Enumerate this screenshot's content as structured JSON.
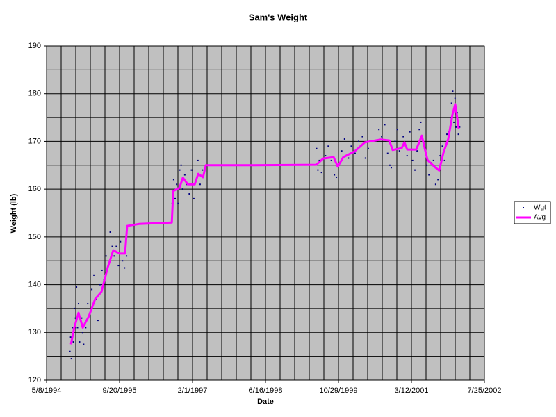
{
  "chart_data": {
    "type": "scatter",
    "title": "Sam's Weight",
    "x_label": "Date",
    "y_label": "Weight (lb)",
    "xlim": [
      "1994-05-08",
      "2002-07-25"
    ],
    "xticks": [
      {
        "value": "1994-05-08",
        "label": "5/8/1994"
      },
      {
        "value": "1995-09-20",
        "label": "9/20/1995"
      },
      {
        "value": "1997-02-01",
        "label": "2/1/1997"
      },
      {
        "value": "1998-06-16",
        "label": "6/16/1998"
      },
      {
        "value": "1999-10-29",
        "label": "10/29/1999"
      },
      {
        "value": "2001-03-12",
        "label": "3/12/2001"
      },
      {
        "value": "2002-07-25",
        "label": "7/25/2002"
      }
    ],
    "x_grid_step_days": 100,
    "ylim": [
      120,
      190
    ],
    "yticks": [
      120,
      130,
      140,
      150,
      160,
      170,
      180,
      190
    ],
    "y_grid_step": 5,
    "grid": true,
    "legend": "right",
    "background": "#c0c0c0",
    "series": [
      {
        "name": "Wgt",
        "mode": "markers",
        "color": "#000080",
        "x": [
          "1994-10-15",
          "1994-10-20",
          "1994-10-25",
          "1994-11-01",
          "1994-11-08",
          "1994-11-15",
          "1994-11-22",
          "1994-11-29",
          "1994-12-06",
          "1994-12-13",
          "1994-12-20",
          "1995-01-03",
          "1995-01-10",
          "1995-01-17",
          "1995-01-31",
          "1995-02-14",
          "1995-02-28",
          "1995-03-14",
          "1995-03-28",
          "1995-04-11",
          "1995-04-25",
          "1995-05-09",
          "1995-05-23",
          "1995-06-06",
          "1995-06-20",
          "1995-07-04",
          "1995-07-18",
          "1995-08-01",
          "1995-08-15",
          "1995-08-29",
          "1995-09-12",
          "1995-09-26",
          "1995-10-10",
          "1995-10-24",
          "1995-11-07",
          "1996-09-15",
          "1996-09-25",
          "1996-10-05",
          "1996-10-15",
          "1996-10-25",
          "1996-11-05",
          "1996-11-15",
          "1996-11-25",
          "1996-12-10",
          "1996-12-25",
          "1997-01-10",
          "1997-01-25",
          "1997-02-10",
          "1997-02-25",
          "1997-03-10",
          "1997-03-25",
          "1997-04-10",
          "1999-06-01",
          "1999-06-10",
          "1999-06-20",
          "1999-07-05",
          "1999-08-01",
          "1999-08-20",
          "1999-09-10",
          "1999-10-01",
          "1999-10-15",
          "1999-11-01",
          "1999-11-20",
          "1999-12-10",
          "2000-01-05",
          "2000-01-25",
          "2000-02-20",
          "2000-03-15",
          "2000-04-10",
          "2000-05-01",
          "2000-05-20",
          "2000-08-01",
          "2000-08-20",
          "2000-09-10",
          "2000-09-30",
          "2000-10-15",
          "2000-10-25",
          "2000-11-20",
          "2000-12-05",
          "2000-12-20",
          "2001-01-15",
          "2001-02-10",
          "2001-03-01",
          "2001-03-20",
          "2001-04-05",
          "2001-04-20",
          "2001-05-05",
          "2001-05-15",
          "2001-05-25",
          "2001-06-10",
          "2001-06-25",
          "2001-07-10",
          "2001-07-25",
          "2001-08-10",
          "2001-08-25",
          "2001-09-10",
          "2001-09-25",
          "2001-10-10",
          "2001-10-25",
          "2001-11-10",
          "2001-11-25",
          "2001-12-05",
          "2001-12-12",
          "2001-12-20",
          "2001-12-28",
          "2002-01-05",
          "2002-01-12",
          "2002-01-20",
          "2002-01-28",
          "2002-02-05"
        ],
        "values": [
          126,
          129,
          124.5,
          131,
          128,
          135,
          133,
          139.5,
          131,
          136,
          128,
          133,
          130,
          127.5,
          131,
          136,
          134,
          139,
          142,
          137,
          132.5,
          140,
          143,
          141,
          146,
          144,
          151,
          148,
          146,
          148,
          144,
          149,
          145,
          143.5,
          146,
          157,
          162,
          158,
          161,
          157,
          164,
          165,
          160,
          163,
          161,
          159,
          164,
          158,
          162,
          166,
          161,
          164,
          168.5,
          164,
          166,
          163.5,
          167,
          169,
          166,
          163,
          162.5,
          165,
          168,
          170.5,
          166.5,
          169,
          167.5,
          170,
          171,
          166.5,
          168.5,
          172.5,
          171,
          173.5,
          167.5,
          165,
          164.5,
          170,
          172.5,
          168,
          171,
          167,
          172,
          166,
          164,
          168,
          172.5,
          174,
          171,
          168.5,
          165,
          163,
          165.5,
          166,
          161,
          162,
          167,
          169,
          166,
          171.5,
          172,
          175,
          178,
          180.5,
          174,
          179,
          173,
          176,
          171.5,
          173
        ]
      },
      {
        "name": "Avg",
        "mode": "line",
        "color": "#ff00ff",
        "x": [
          "1994-10-22",
          "1994-11-14",
          "1994-12-13",
          "1995-01-11",
          "1995-02-22",
          "1995-04-06",
          "1995-05-19",
          "1995-07-01",
          "1995-08-08",
          "1995-09-20",
          "1995-10-28",
          "1995-11-11",
          "1996-01-31",
          "1996-09-12",
          "1996-09-22",
          "1996-11-04",
          "1996-11-27",
          "1996-12-31",
          "1997-02-16",
          "1997-03-12",
          "1997-04-14",
          "1997-05-03",
          "1998-03-22",
          "1999-05-30",
          "1999-07-16",
          "1999-09-26",
          "1999-10-24",
          "1999-12-01",
          "2000-02-16",
          "2000-04-27",
          "2000-08-14",
          "2000-10-11",
          "2000-11-03",
          "2001-01-04",
          "2001-01-23",
          "2001-02-11",
          "2001-04-14",
          "2001-05-22",
          "2001-06-30",
          "2001-08-16",
          "2001-09-18",
          "2001-10-17",
          "2001-11-19",
          "2001-12-18",
          "2002-01-06",
          "2002-01-30"
        ],
        "values": [
          127.5,
          131,
          134.1,
          131,
          133.4,
          137,
          138.5,
          143.6,
          147.2,
          146.5,
          146.5,
          152.3,
          152.7,
          153,
          159.6,
          160.3,
          162.4,
          161,
          161,
          163.2,
          162.5,
          165,
          165,
          165.1,
          166.4,
          166.7,
          164.7,
          166.7,
          167.9,
          169.8,
          170.4,
          170.2,
          168.2,
          168.6,
          169.8,
          168.3,
          168.3,
          171.2,
          166.1,
          164.7,
          163.9,
          167.6,
          170.5,
          175.6,
          177.8,
          172.7
        ]
      }
    ]
  }
}
